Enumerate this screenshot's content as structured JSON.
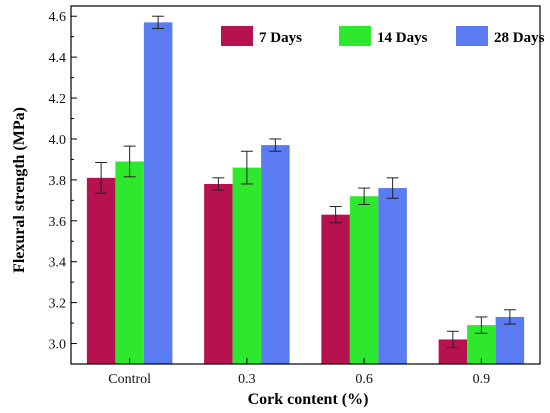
{
  "chart_data": {
    "type": "bar",
    "xlabel": "Cork content (%)",
    "ylabel": "Flexural strength (MPa)",
    "categories": [
      "Control",
      "0.3",
      "0.6",
      "0.9"
    ],
    "ylim": [
      2.9,
      4.65
    ],
    "yticks": [
      "3.0",
      "3.2",
      "3.4",
      "3.6",
      "3.8",
      "4.0",
      "4.2",
      "4.4",
      "4.6"
    ],
    "legend_position": "top-right",
    "error_bars": true,
    "grid": false,
    "series": [
      {
        "name": "7 Days",
        "color": "#b5124f",
        "values": [
          3.81,
          3.78,
          3.63,
          3.02
        ],
        "errors": [
          0.075,
          0.03,
          0.04,
          0.04
        ]
      },
      {
        "name": "14 Days",
        "color": "#2ee82e",
        "values": [
          3.89,
          3.86,
          3.72,
          3.09
        ],
        "errors": [
          0.075,
          0.08,
          0.04,
          0.04
        ]
      },
      {
        "name": "28 Days",
        "color": "#5a7bf2",
        "values": [
          4.57,
          3.97,
          3.76,
          3.13
        ],
        "errors": [
          0.03,
          0.03,
          0.05,
          0.035
        ]
      }
    ]
  }
}
